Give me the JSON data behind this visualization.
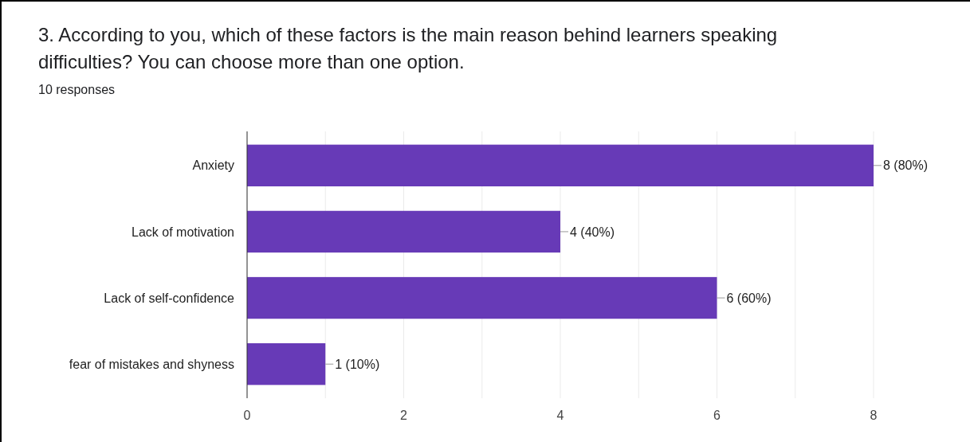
{
  "chart_data": {
    "type": "bar",
    "orientation": "horizontal",
    "title": "3. According to you, which of these factors is the main reason behind learners speaking difficulties? You can choose more than one option.",
    "subtitle": "10 responses",
    "categories": [
      "Anxiety",
      "Lack of motivation",
      "Lack of self-confidence",
      "fear of mistakes and shyness"
    ],
    "values": [
      8,
      4,
      6,
      1
    ],
    "value_labels": [
      "8 (80%)",
      "4 (40%)",
      "6 (60%)",
      "1 (10%)"
    ],
    "color": "#673ab7",
    "xlim": [
      0,
      8
    ],
    "xticks": [
      0,
      {
        "value": 1,
        "label": null
      },
      2,
      {
        "value": 3,
        "label": null
      },
      4,
      {
        "value": 5,
        "label": null
      },
      6,
      {
        "value": 7,
        "label": null
      },
      8
    ],
    "grid": "x"
  }
}
